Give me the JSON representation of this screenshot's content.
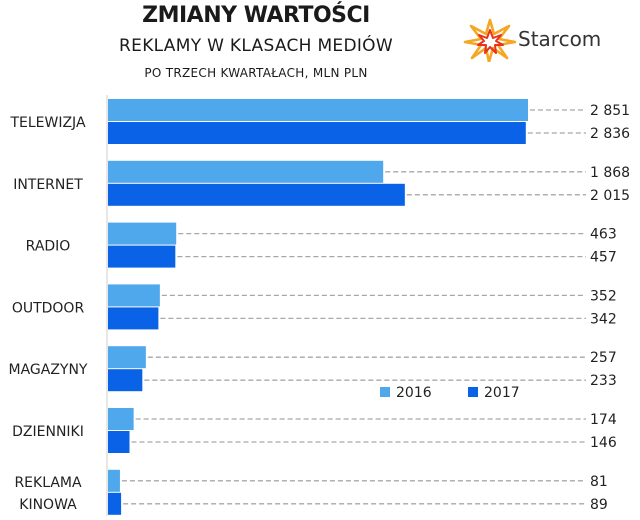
{
  "chart_data": {
    "type": "bar",
    "orientation": "horizontal",
    "title": "ZMIANY WARTOŚCI",
    "subtitle": "REKLAMY W KLASACH MEDIÓW",
    "subtitle2": "PO TRZECH KWARTAŁACH, MLN PLN",
    "categories": [
      [
        "TELEWIZJA"
      ],
      [
        "INTERNET"
      ],
      [
        "RADIO"
      ],
      [
        "OUTDOOR"
      ],
      [
        "MAGAZYNY"
      ],
      [
        "DZIENNIKI"
      ],
      [
        "REKLAMA",
        "KINOWA"
      ]
    ],
    "series": [
      {
        "name": "2016",
        "color": "#4fa8ec",
        "values": [
          2851,
          1868,
          463,
          352,
          257,
          174,
          81
        ],
        "labels": [
          "2 851",
          "1 868",
          "463",
          "352",
          "257",
          "174",
          "81"
        ]
      },
      {
        "name": "2017",
        "color": "#0a63e6",
        "values": [
          2836,
          2015,
          457,
          342,
          233,
          146,
          89
        ],
        "labels": [
          "2 836",
          "2 015",
          "457",
          "342",
          "233",
          "146",
          "89"
        ]
      }
    ],
    "xlim": [
      0,
      2851
    ],
    "legend_position": "right",
    "grid": false
  },
  "logo": {
    "text": "Starcom",
    "colors": [
      "#f5a623",
      "#e8321e"
    ]
  }
}
